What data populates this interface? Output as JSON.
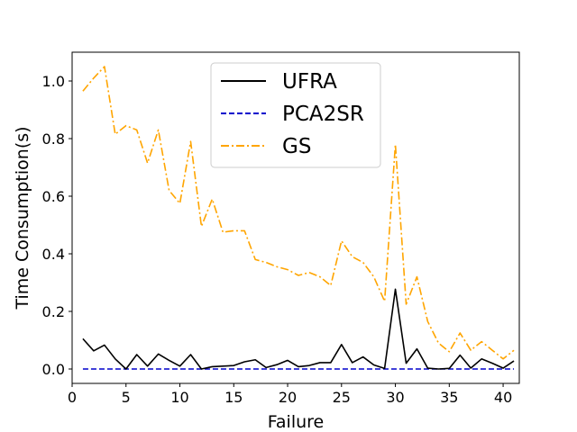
{
  "chart_data": {
    "type": "line",
    "xlabel": "Failure",
    "ylabel": "Time Consumption(s)",
    "xlim": [
      0.0,
      41.5
    ],
    "ylim": [
      -0.05,
      1.1
    ],
    "x_ticks": [
      0,
      5,
      10,
      15,
      20,
      25,
      30,
      35,
      40
    ],
    "y_ticks": [
      0.0,
      0.2,
      0.4,
      0.6,
      0.8,
      1.0
    ],
    "y_tick_labels": [
      "0.0",
      "0.2",
      "0.4",
      "0.6",
      "0.8",
      "1.0"
    ],
    "x": [
      1,
      2,
      3,
      4,
      5,
      6,
      7,
      8,
      9,
      10,
      11,
      12,
      13,
      14,
      15,
      16,
      17,
      18,
      19,
      20,
      21,
      22,
      23,
      24,
      25,
      26,
      27,
      28,
      29,
      30,
      31,
      32,
      33,
      34,
      35,
      36,
      37,
      38,
      39,
      40,
      41
    ],
    "legend_position": "top-center",
    "grid": false,
    "series": [
      {
        "name": "UFRA",
        "color": "#000000",
        "style": "solid",
        "values": [
          0.105,
          0.063,
          0.083,
          0.035,
          0.0,
          0.05,
          0.01,
          0.052,
          0.03,
          0.01,
          0.05,
          0.0,
          0.008,
          0.01,
          0.012,
          0.025,
          0.032,
          0.005,
          0.015,
          0.03,
          0.008,
          0.012,
          0.022,
          0.022,
          0.085,
          0.022,
          0.042,
          0.014,
          0.002,
          0.277,
          0.02,
          0.07,
          0.003,
          0.0,
          0.002,
          0.048,
          0.003,
          0.035,
          0.02,
          0.003,
          0.028
        ]
      },
      {
        "name": "PCA2SR",
        "color": "#0000cc",
        "style": "dashed",
        "values": [
          0.0,
          0.0,
          0.0,
          0.0,
          0.0,
          0.0,
          0.0,
          0.0,
          0.0,
          0.0,
          0.0,
          0.0,
          0.0,
          0.0,
          0.0,
          0.0,
          0.0,
          0.0,
          0.0,
          0.0,
          0.0,
          0.0,
          0.0,
          0.0,
          0.0,
          0.0,
          0.0,
          0.0,
          0.0,
          0.0,
          0.0,
          0.0,
          0.0,
          0.0,
          0.0,
          0.0,
          0.0,
          0.0,
          0.0,
          0.0,
          0.0
        ]
      },
      {
        "name": "GS",
        "color": "#ffa500",
        "style": "dashdot",
        "values": [
          0.965,
          1.01,
          1.05,
          0.815,
          0.845,
          0.83,
          0.715,
          0.83,
          0.62,
          0.575,
          0.79,
          0.495,
          0.59,
          0.475,
          0.48,
          0.48,
          0.38,
          0.37,
          0.355,
          0.345,
          0.325,
          0.335,
          0.32,
          0.29,
          0.445,
          0.39,
          0.37,
          0.32,
          0.235,
          0.78,
          0.225,
          0.32,
          0.165,
          0.09,
          0.06,
          0.125,
          0.065,
          0.095,
          0.065,
          0.035,
          0.065
        ]
      }
    ]
  }
}
